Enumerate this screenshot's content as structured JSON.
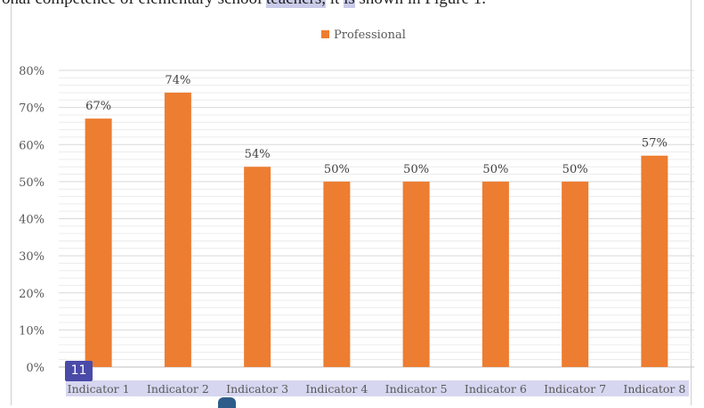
{
  "page": {
    "top_text_plain": "onal competence of elementary school ",
    "top_text_hl1": "teachers,",
    "top_text_mid": " it ",
    "top_text_hl2": "is",
    "top_text_end": " shown in Figure 1.",
    "badge_label": "11"
  },
  "colors": {
    "bar": "#ed7d31",
    "grid": "#d9d9d9",
    "label_band": "#d6d6f0"
  },
  "chart_data": {
    "type": "bar",
    "categories": [
      "Indicator 1",
      "Indicator 2",
      "Indicator 3",
      "Indicator 4",
      "Indicator 5",
      "Indicator 6",
      "Indicator 7",
      "Indicator 8"
    ],
    "series": [
      {
        "name": "Professional",
        "values": [
          67,
          74,
          54,
          50,
          50,
          50,
          50,
          57
        ]
      }
    ],
    "data_labels": [
      "67%",
      "74%",
      "54%",
      "50%",
      "50%",
      "50%",
      "50%",
      "57%"
    ],
    "y_ticks": [
      "0%",
      "10%",
      "20%",
      "30%",
      "40%",
      "50%",
      "60%",
      "70%",
      "80%"
    ],
    "ylim": [
      0,
      80
    ],
    "grid": true,
    "legend_position": "top-center"
  }
}
